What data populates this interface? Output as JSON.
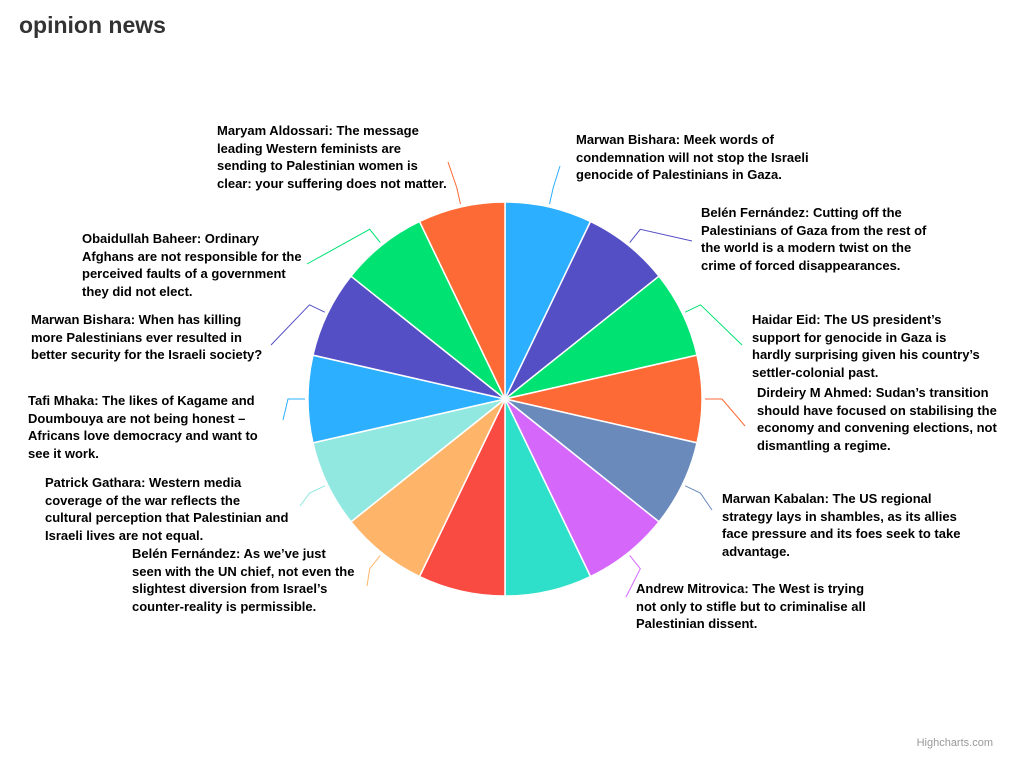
{
  "chart_data": {
    "type": "pie",
    "title": "opinion news",
    "slices": [
      {
        "name": "Marwan Bishara: Meek words of condemnation will not stop the Israeli genocide of Palestinians in Gaza.",
        "value": 1,
        "color": "#2caffe"
      },
      {
        "name": "Belén Fernández: Cutting off the Palestinians of Gaza from the rest of the world is a modern twist on the crime of forced disappearances.",
        "value": 1,
        "color": "#544fc5"
      },
      {
        "name": "Haidar Eid: The US president’s support for genocide in Gaza is hardly surprising given his country’s settler-colonial past.",
        "value": 1,
        "color": "#00e272"
      },
      {
        "name": "Dirdeiry M Ahmed: Sudan’s transition should have focused on stabilising the economy and convening elections, not dismantling a regime.",
        "value": 1,
        "color": "#fe6a35"
      },
      {
        "name": "Marwan Kabalan: The US regional strategy lays in shambles, as its allies face pressure and its foes seek to take advantage.",
        "value": 1,
        "color": "#6b8abc"
      },
      {
        "name": "Andrew Mitrovica: The West is trying not only to stifle but to criminalise all Palestinian dissent.",
        "value": 1,
        "color": "#d568fb"
      },
      {
        "name": "",
        "value": 1,
        "color": "#2ee0ca"
      },
      {
        "name": "",
        "value": 1,
        "color": "#fa4b42"
      },
      {
        "name": "Belén Fernández: As we’ve just seen with the UN chief, not even the slightest diversion from Israel’s counter-reality is permissible.",
        "value": 1,
        "color": "#feb56a"
      },
      {
        "name": "Patrick Gathara: Western media coverage of the war reflects the cultural perception that Palestinian and Israeli lives are not equal.",
        "value": 1,
        "color": "#91e8e1"
      },
      {
        "name": "Tafi Mhaka: The likes of Kagame and Doumbouya are not being honest – Africans love democracy and want to see it work.",
        "value": 1,
        "color": "#2caffe"
      },
      {
        "name": "Marwan Bishara: When has killing more Palestinians ever resulted in better security for the Israeli society?",
        "value": 1,
        "color": "#544fc5"
      },
      {
        "name": "Obaidullah Baheer: Ordinary Afghans are not responsible for the perceived faults of a government they did not elect.",
        "value": 1,
        "color": "#00e272"
      },
      {
        "name": "Maryam Aldossari: The message leading Western feminists are sending to Palestinian women is clear: your suffering does not matter.",
        "value": 1,
        "color": "#fe6a35"
      }
    ]
  },
  "credits": "Highcharts.com"
}
